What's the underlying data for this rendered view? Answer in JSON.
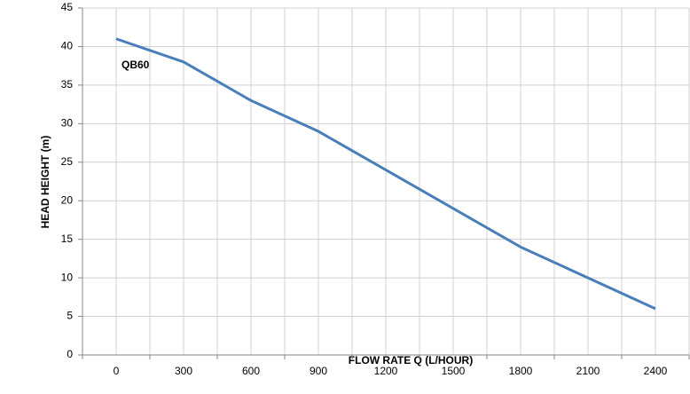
{
  "chart_data": {
    "type": "line",
    "xlabel": "FLOW RATE Q (L/HOUR)",
    "ylabel": "HEAD HEIGHT (m)",
    "categories": [
      "0",
      "300",
      "600",
      "900",
      "1200",
      "1500",
      "1800",
      "2100",
      "2400"
    ],
    "series": [
      {
        "name": "QB60",
        "color": "#4a7ebb",
        "values": [
          41,
          38,
          33,
          29,
          24,
          19,
          14,
          10,
          6
        ]
      }
    ],
    "ylim": [
      0,
      45
    ],
    "yticks": [
      0,
      5,
      10,
      15,
      20,
      25,
      30,
      35,
      40,
      45
    ],
    "grid": true
  }
}
